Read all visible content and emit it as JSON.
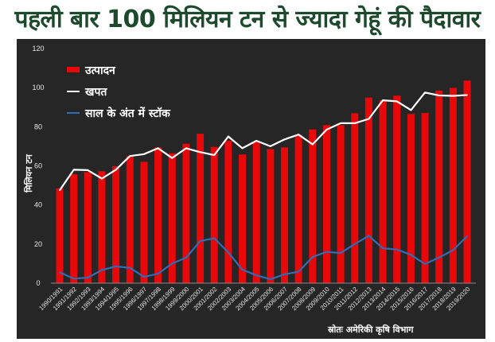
{
  "chart_data": {
    "type": "bar",
    "title": "पहली बार 100 मिलियन टन से ज्यादा गेहूं की पैदावार",
    "ylabel": "मिलियन टन",
    "xlabel": "",
    "ylim": [
      0,
      120
    ],
    "yticks": [
      0,
      20,
      40,
      60,
      80,
      100,
      120
    ],
    "source": "स्रोतः अमेरिकी कृषि विभाग",
    "legend_position": "top-left",
    "categories": [
      "1990/1991",
      "1991/1992",
      "1992/1993",
      "1993/1994",
      "1994/1995",
      "1995/1996",
      "1996/1997",
      "1997/1998",
      "1998/1999",
      "1999/2000",
      "2000/2001",
      "2001/2002",
      "2002/2003",
      "2003/2004",
      "2004/2005",
      "2005/2006",
      "2006/2007",
      "2007/2008",
      "2008/2009",
      "2009/2010",
      "2010/2011",
      "2011/2012",
      "2012/2013",
      "2013/2014",
      "2014/2015",
      "2015/2016",
      "2016/2017",
      "2017/2018",
      "2018/2019",
      "2019/2020"
    ],
    "series": [
      {
        "name": "उत्पादन",
        "type": "bar",
        "color": "#e8080a",
        "values": [
          48.5,
          55.7,
          56.8,
          57.2,
          59.8,
          65.0,
          62.1,
          69.4,
          66.4,
          71.3,
          76.4,
          69.7,
          72.8,
          65.8,
          72.2,
          68.6,
          69.4,
          75.8,
          78.6,
          80.8,
          80.8,
          86.9,
          94.9,
          93.5,
          95.9,
          86.5,
          87.0,
          98.5,
          99.9,
          103.6
        ]
      },
      {
        "name": "खपत",
        "type": "line",
        "color": "#ffffff",
        "values": [
          47.5,
          58.0,
          57.8,
          53.5,
          58.0,
          65.0,
          66.0,
          69.0,
          64.0,
          69.0,
          67.0,
          65.5,
          75.0,
          69.0,
          72.8,
          70.0,
          73.5,
          76.0,
          71.0,
          78.5,
          81.8,
          81.8,
          84.0,
          93.5,
          93.0,
          88.5,
          97.5,
          96.0,
          95.8,
          96.2
        ]
      },
      {
        "name": "साल के अंत में स्टॉक",
        "type": "line",
        "color": "#2e6db4",
        "values": [
          5.5,
          2.3,
          2.8,
          6.7,
          8.6,
          7.8,
          3.2,
          4.8,
          10.0,
          13.0,
          21.5,
          23.0,
          15.7,
          6.9,
          4.0,
          2.0,
          4.5,
          5.8,
          13.4,
          16.0,
          15.4,
          20.0,
          24.2,
          17.8,
          17.2,
          14.5,
          9.8,
          13.1,
          16.9,
          24.0
        ]
      }
    ]
  }
}
